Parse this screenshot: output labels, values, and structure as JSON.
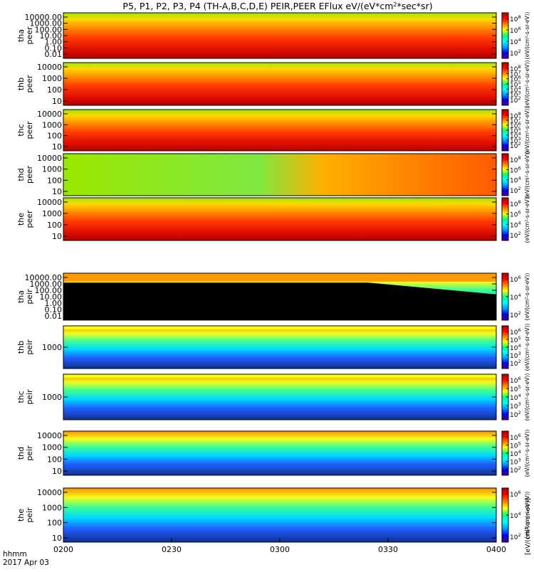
{
  "chart_data": {
    "type": "heatmap",
    "title": "P5, P1, P2, P3, P4 (TH-A,B,C,D,E) PEIR,PEER EFlux eV/(eV*cm²*sec*sr)",
    "title_parts": {
      "pre": "P5, P1, P2, P3, P4 (TH-A,B,C,D,E) PEIR,PEER EFlux eV/(eV*cm",
      "sup": "2",
      "post": "*sec*sr)"
    },
    "x_axis": {
      "tick_labels": [
        "0200",
        "0230",
        "0300",
        "0330",
        "0400"
      ],
      "corner_label": "hhmm",
      "date_label": "2017 Apr 03"
    },
    "colorbar_unit": "[eV/(cm²-s-sr-eV)]",
    "colorbar_tick_base": "10",
    "colormap": [
      "#4b0082",
      "#0000ff",
      "#00a0ff",
      "#00ffff",
      "#00ff80",
      "#ffff00",
      "#ff8000",
      "#ff0000",
      "#b00000"
    ],
    "panels": [
      {
        "probe": "tha",
        "species": "peer",
        "log_y": true,
        "yticks": [
          "10000.00",
          "1000.00",
          "100.00",
          "10.00",
          "1.00",
          "0.10",
          "0.01"
        ],
        "cbar_exponents": [
          "2",
          "4",
          "6",
          "8"
        ],
        "cbar_label": "(eV/(cm²-s-sr-eV))"
      },
      {
        "probe": "thb",
        "species": "peer",
        "log_y": true,
        "yticks": [
          "10000",
          "1000",
          "100",
          "10"
        ],
        "cbar_exponents": [
          "2",
          "3",
          "4",
          "5",
          "6",
          "7",
          "8"
        ],
        "cbar_label": "(eV/(cm²-s-sr-eV))"
      },
      {
        "probe": "thc",
        "species": "peer",
        "log_y": true,
        "yticks": [
          "10000",
          "1000",
          "100",
          "10"
        ],
        "cbar_exponents": [
          "2",
          "3",
          "4",
          "5",
          "6",
          "7",
          "8"
        ],
        "cbar_label": "(eV/(cm²-s-sr-eV))"
      },
      {
        "probe": "thd",
        "species": "peer",
        "log_y": true,
        "yticks": [
          "10000",
          "1000",
          "100",
          "10"
        ],
        "cbar_exponents": [
          "2",
          "4",
          "6",
          "8"
        ],
        "cbar_label": "(eV/(cm²-s-sr-eV))"
      },
      {
        "probe": "the",
        "species": "peer",
        "log_y": true,
        "yticks": [
          "10000",
          "1000",
          "100",
          "10"
        ],
        "cbar_exponents": [
          "2",
          "4",
          "6",
          "8"
        ],
        "cbar_label": "(eV/(cm²-s-sr-eV))"
      },
      {
        "probe": "tha",
        "species": "peir",
        "log_y": true,
        "yticks": [
          "10000.00",
          "1000.00",
          "100.00",
          "10.00",
          "1.00",
          "0.10",
          "0.01"
        ],
        "cbar_exponents": [
          "2",
          "4",
          "6"
        ],
        "cbar_label": "(eV/(cm²-s-sr-eV))"
      },
      {
        "probe": "thb",
        "species": "peir",
        "log_y": true,
        "yticks": [
          "1000"
        ],
        "cbar_exponents": [
          "2",
          "3",
          "4",
          "5",
          "6"
        ],
        "cbar_label": "(eV/(cm²-s-sr-eV))"
      },
      {
        "probe": "thc",
        "species": "peir",
        "log_y": true,
        "yticks": [
          "1000"
        ],
        "cbar_exponents": [
          "2",
          "3",
          "4",
          "5",
          "6"
        ],
        "cbar_label": "(eV/(cm²-s-sr-eV))"
      },
      {
        "probe": "thd",
        "species": "peir",
        "log_y": true,
        "yticks": [
          "10000",
          "1000",
          "100",
          "10"
        ],
        "cbar_exponents": [
          "2",
          "3",
          "4",
          "5",
          "6"
        ],
        "cbar_label": "(eV/(cm²-s-sr-eV))"
      },
      {
        "probe": "the",
        "species": "peir",
        "log_y": true,
        "yticks": [
          "10000",
          "1000",
          "100",
          "10"
        ],
        "cbar_exponents": [
          "2",
          "4",
          "6"
        ],
        "cbar_label": "(eV/(cm²-s-sr-eV))"
      }
    ]
  }
}
